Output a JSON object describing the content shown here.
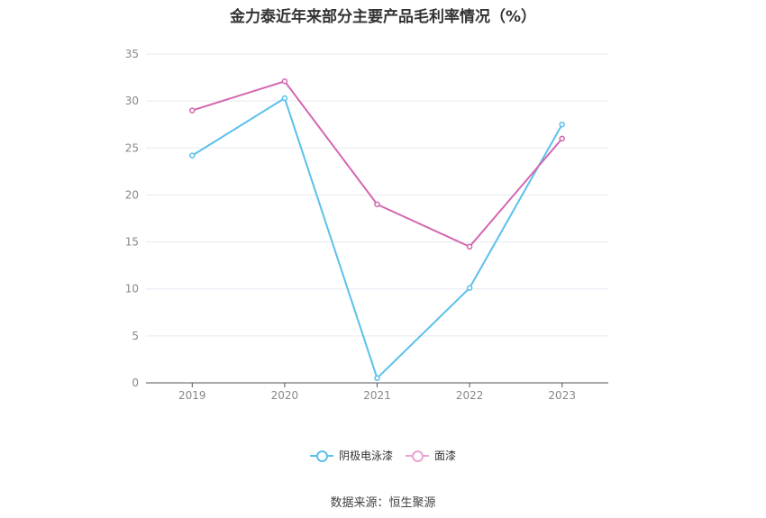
{
  "chart_data": {
    "type": "line",
    "title": "金力泰近年来部分主要产品毛利率情况（%）",
    "categories": [
      "2019",
      "2020",
      "2021",
      "2022",
      "2023"
    ],
    "series": [
      {
        "name": "阴极电泳漆",
        "values": [
          24.2,
          30.3,
          0.5,
          10.1,
          27.5
        ],
        "color": "#5bc0eb"
      },
      {
        "name": "面漆",
        "values": [
          29.0,
          32.1,
          19.0,
          14.5,
          26.0
        ],
        "color": "#d466b0"
      }
    ],
    "ylim": [
      0,
      35
    ],
    "yticks": [
      0,
      5,
      10,
      15,
      20,
      25,
      30,
      35
    ],
    "grid": true,
    "legend_position": "bottom-center"
  },
  "footer": {
    "source": "数据来源：恒生聚源"
  },
  "colors": {
    "grid": "#e6e9f2",
    "axis": "#555555",
    "tick_label": "#888888"
  }
}
